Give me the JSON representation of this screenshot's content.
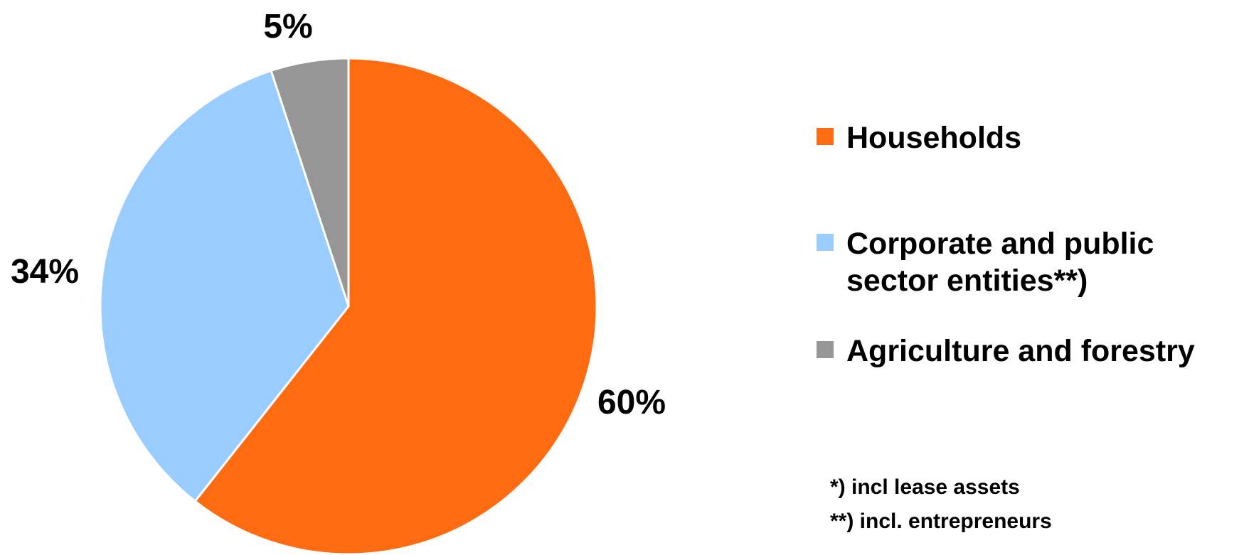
{
  "chart_data": {
    "type": "pie",
    "title": "",
    "slices": [
      {
        "name": "Households",
        "value": 60,
        "label": "60%",
        "color": "#FF6B10"
      },
      {
        "name": "Corporate and public sector entities**)",
        "value": 34,
        "label": "34%",
        "color": "#99CCFF"
      },
      {
        "name": "Agriculture and forestry",
        "value": 5,
        "label": "5%",
        "color": "#969696"
      }
    ],
    "legend_position": "right"
  },
  "legend": {
    "items": [
      {
        "label_lines": [
          "Households"
        ],
        "color": "#FF6B10",
        "icon": "square-swatch"
      },
      {
        "label_lines": [
          "Corporate and public",
          "sector entities**)"
        ],
        "color": "#99CCFF",
        "icon": "square-swatch"
      },
      {
        "label_lines": [
          "Agriculture and forestry"
        ],
        "color": "#969696",
        "icon": "square-swatch"
      }
    ]
  },
  "footnotes": [
    "*) incl lease assets",
    "**) incl. entrepreneurs"
  ]
}
